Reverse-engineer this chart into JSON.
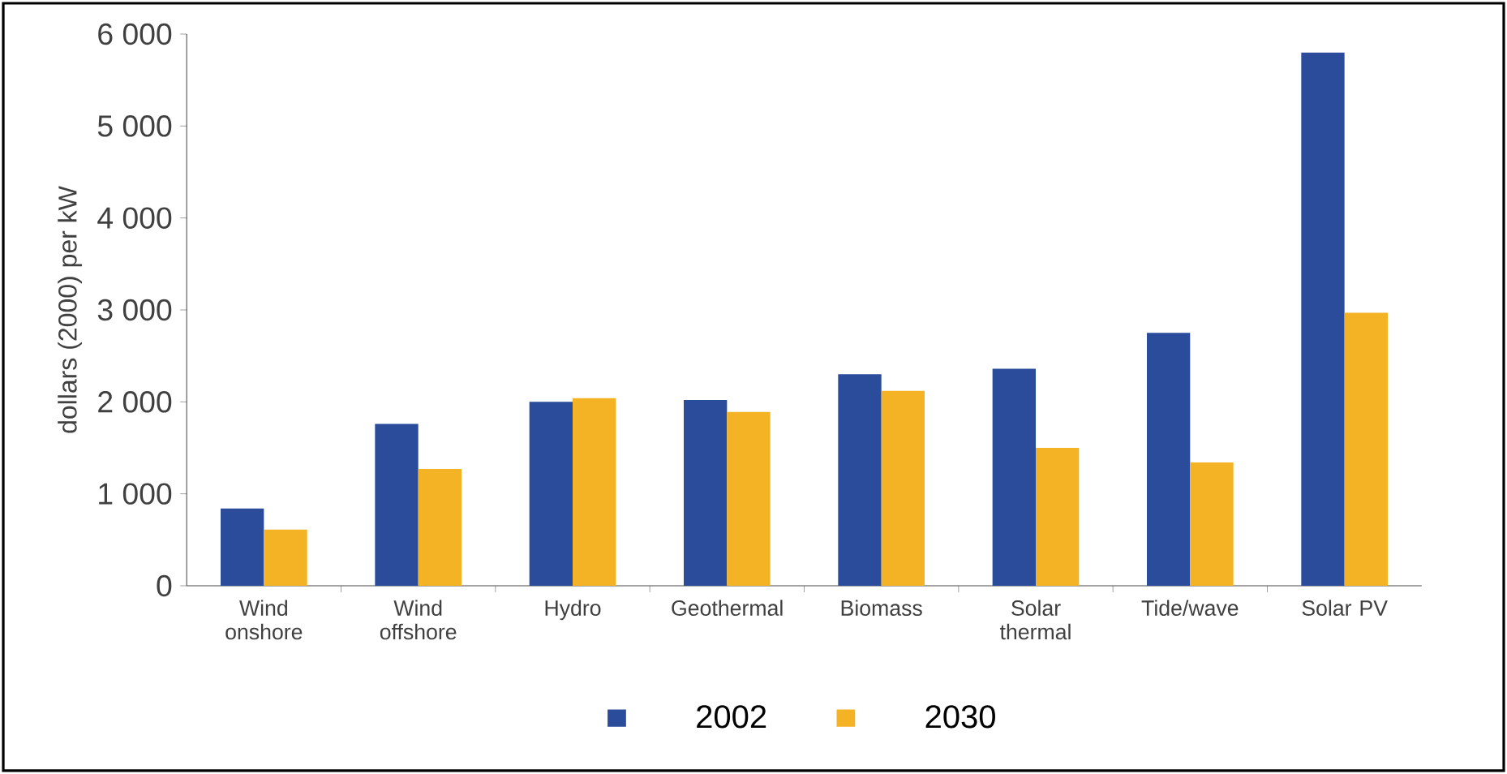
{
  "chart_data": {
    "type": "bar",
    "ylabel": "dollars (2000) per kW",
    "categories": [
      "Wind onshore",
      "Wind offshore",
      "Hydro",
      "Geothermal",
      "Biomass",
      "Solar thermal",
      "Tide/wave",
      "Solar PV"
    ],
    "series": [
      {
        "name": "2002",
        "color": "#2b4c9b",
        "values": [
          840,
          1760,
          2000,
          2020,
          2300,
          2360,
          2750,
          5800
        ]
      },
      {
        "name": "2030",
        "color": "#f4b325",
        "values": [
          610,
          1270,
          2040,
          1890,
          2120,
          1500,
          1340,
          2970
        ]
      }
    ],
    "ylim": [
      0,
      6000
    ],
    "yticks": [
      {
        "value": 0,
        "label": "0"
      },
      {
        "value": 1000,
        "label": "1 000"
      },
      {
        "value": 2000,
        "label": "2 000"
      },
      {
        "value": 3000,
        "label": "3 000"
      },
      {
        "value": 4000,
        "label": "4 000"
      },
      {
        "value": 5000,
        "label": "5 000"
      },
      {
        "value": 6000,
        "label": "6 000"
      }
    ],
    "grid": false,
    "legend": "bottom"
  }
}
